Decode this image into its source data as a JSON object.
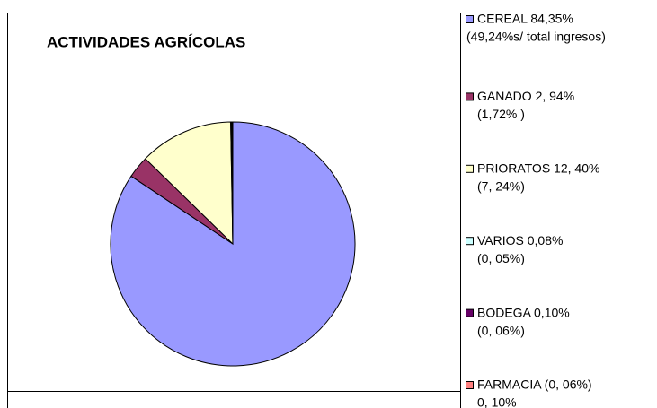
{
  "chart_data": {
    "type": "pie",
    "title": "ACTIVIDADES AGRÍCOLAS",
    "categories": [
      "CEREAL 84,35%",
      "GANADO 2, 94%",
      "PRIORATOS 12, 40%",
      "VARIOS 0,08%",
      "BODEGA 0,10%",
      "FARMACIA (0, 06%)"
    ],
    "sublabels": [
      "(49,24%s/ total ingresos)",
      "(1,72% )",
      "(7, 24%)",
      "(0, 05%)",
      "(0, 06%)",
      "0, 10%"
    ],
    "values": [
      84.35,
      2.94,
      12.4,
      0.08,
      0.1,
      0.1
    ],
    "colors": [
      "#9999ff",
      "#993366",
      "#ffffcc",
      "#ccffff",
      "#660066",
      "#ff8080"
    ]
  }
}
